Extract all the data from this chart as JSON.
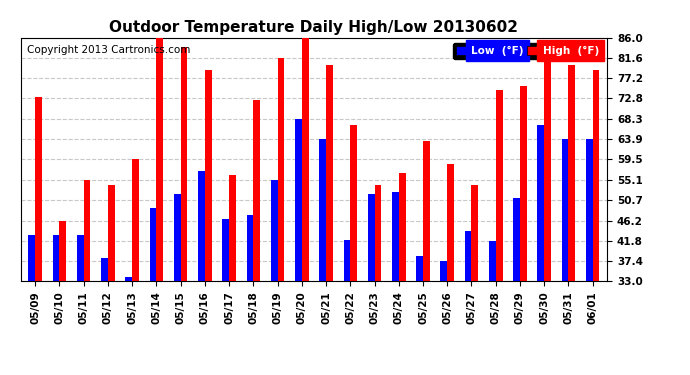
{
  "title": "Outdoor Temperature Daily High/Low 20130602",
  "copyright": "Copyright 2013 Cartronics.com",
  "categories": [
    "05/09",
    "05/10",
    "05/11",
    "05/12",
    "05/13",
    "05/14",
    "05/15",
    "05/16",
    "05/17",
    "05/18",
    "05/19",
    "05/20",
    "05/21",
    "05/22",
    "05/23",
    "05/24",
    "05/25",
    "05/26",
    "05/27",
    "05/28",
    "05/29",
    "05/30",
    "05/31",
    "06/01"
  ],
  "high": [
    73.0,
    46.0,
    55.0,
    54.0,
    59.5,
    86.0,
    84.0,
    79.0,
    56.0,
    72.5,
    81.6,
    86.2,
    80.0,
    67.0,
    54.0,
    56.5,
    63.5,
    58.5,
    54.0,
    74.5,
    75.5,
    84.0,
    80.0,
    79.0
  ],
  "low": [
    43.0,
    43.0,
    43.0,
    38.0,
    34.0,
    49.0,
    52.0,
    57.0,
    46.5,
    47.5,
    55.0,
    68.3,
    64.0,
    42.0,
    52.0,
    52.5,
    38.5,
    37.5,
    44.0,
    41.8,
    51.0,
    67.0,
    64.0,
    64.0
  ],
  "yticks": [
    33.0,
    37.4,
    41.8,
    46.2,
    50.7,
    55.1,
    59.5,
    63.9,
    68.3,
    72.8,
    77.2,
    81.6,
    86.0
  ],
  "ymin": 33.0,
  "ymax": 86.0,
  "bg_color": "#ffffff",
  "plot_bg": "#ffffff",
  "low_color": "#0000ff",
  "high_color": "#ff0000",
  "grid_color": "#c8c8c8",
  "title_fontsize": 11,
  "copyright_fontsize": 7.5,
  "legend_low_label": "Low  (°F)",
  "legend_high_label": "High  (°F)"
}
